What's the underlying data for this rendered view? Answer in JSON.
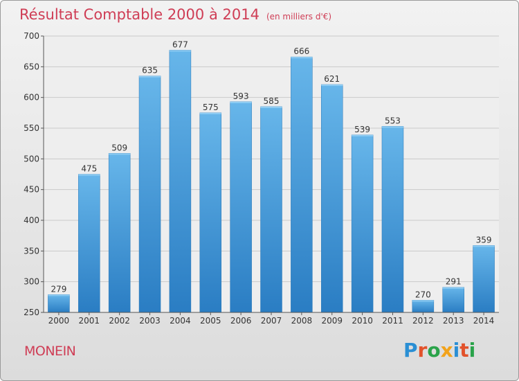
{
  "header": {
    "title": "Résultat Comptable 2000 à 2014",
    "unit": "(en milliers d'€)"
  },
  "footer": {
    "city": "MONEIN",
    "logo_letters": [
      "P",
      "r",
      "o",
      "x",
      "i",
      "t",
      "i"
    ],
    "logo_colors": [
      "#2a8fd4",
      "#e2522b",
      "#2aa34a",
      "#f2a31b",
      "#2a8fd4",
      "#e2522b",
      "#2aa34a"
    ]
  },
  "chart_data": {
    "type": "bar",
    "title": "Résultat Comptable 2000 à 2014",
    "categories": [
      "2000",
      "2001",
      "2002",
      "2003",
      "2004",
      "2005",
      "2006",
      "2007",
      "2008",
      "2009",
      "2010",
      "2011",
      "2012",
      "2013",
      "2014"
    ],
    "values": [
      279,
      475,
      509,
      635,
      677,
      575,
      593,
      585,
      666,
      621,
      539,
      553,
      270,
      291,
      359
    ],
    "ylim": [
      250,
      700
    ],
    "yticks": [
      250,
      300,
      350,
      400,
      450,
      500,
      550,
      600,
      650,
      700
    ],
    "grid": true,
    "bar_color": "#3f97d6"
  }
}
